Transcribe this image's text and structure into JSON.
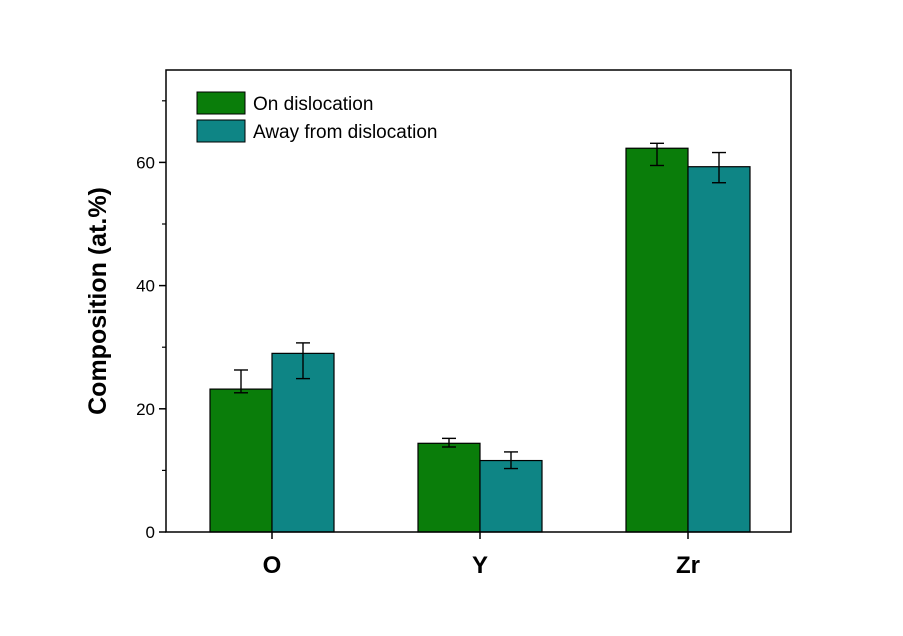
{
  "chart_data": {
    "type": "bar",
    "categories": [
      "O",
      "Y",
      "Zr"
    ],
    "series": [
      {
        "name": "On dislocation",
        "color": "#0a7d0a",
        "values": [
          23.2,
          14.4,
          62.3
        ],
        "error_low": [
          22.6,
          13.8,
          59.5
        ],
        "error_high": [
          26.3,
          15.2,
          63.1
        ]
      },
      {
        "name": "Away from dislocation",
        "color": "#0e8585",
        "values": [
          29.0,
          11.6,
          59.3
        ],
        "error_low": [
          24.9,
          10.3,
          56.7
        ],
        "error_high": [
          30.7,
          13.0,
          61.6
        ]
      }
    ],
    "xlabel": "",
    "ylabel": "Composition (at.%)",
    "ylim": [
      0,
      75
    ],
    "yticks": [
      0,
      20,
      40,
      60
    ],
    "ytick_labels": [
      "0",
      "20",
      "40",
      "60"
    ],
    "grid": false,
    "legend_position": "top-left"
  }
}
